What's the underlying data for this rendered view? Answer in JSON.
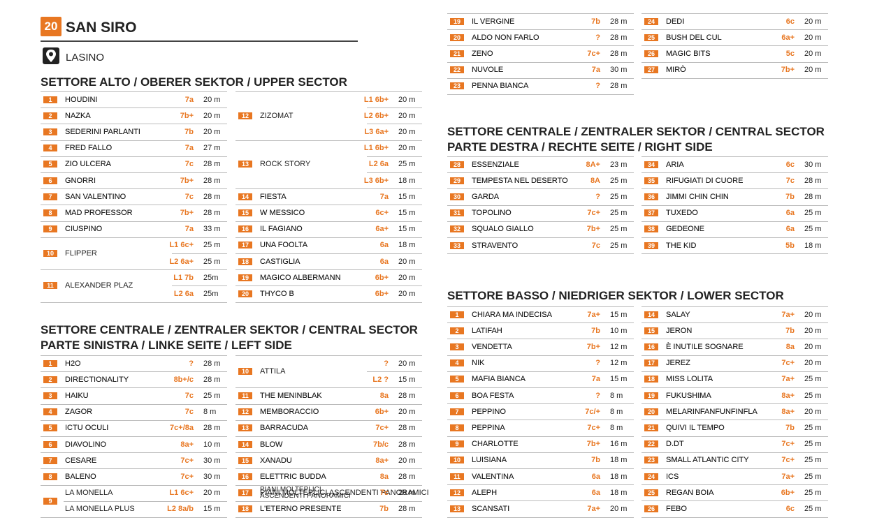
{
  "header": {
    "number": "20",
    "title": "SAN SIRO",
    "location": "LASINO"
  },
  "sections": [
    {
      "title": [
        "SETTORE ALTO / OBERER SEKTOR / UPPER SECTOR"
      ],
      "columns": [
        [
          {
            "n": "1",
            "name": "HOUDINI",
            "grade": "7a",
            "length": "20 m"
          },
          {
            "n": "2",
            "name": "NAZKA",
            "grade": "7b+",
            "length": "20 m"
          },
          {
            "n": "3",
            "name": "SEDERINI PARLANTI",
            "grade": "7b",
            "length": "20 m"
          },
          {
            "n": "4",
            "name": "FRED FALLO",
            "grade": "7a",
            "length": "27 m"
          },
          {
            "n": "5",
            "name": "ZIO ULCERA",
            "grade": "7c",
            "length": "28 m"
          },
          {
            "n": "6",
            "name": "GNORRI",
            "grade": "7b+",
            "length": "28 m"
          },
          {
            "n": "7",
            "name": "SAN VALENTINO",
            "grade": "7c",
            "length": "28 m"
          },
          {
            "n": "8",
            "name": "MAD PROFESSOR",
            "grade": "7b+",
            "length": "28 m"
          },
          {
            "n": "9",
            "name": "CIUSPINO",
            "grade": "7a",
            "length": "33 m"
          },
          {
            "n": "10",
            "name": "FLIPPER",
            "pitches": [
              {
                "grade": "L1 6c+",
                "length": "25 m"
              },
              {
                "grade": "L2 6a+",
                "length": "25 m"
              }
            ]
          },
          {
            "n": "11",
            "name": "ALEXANDER PLAZ",
            "pitches": [
              {
                "grade": "L1 7b",
                "length": "25m"
              },
              {
                "grade": "L2 6a",
                "length": "25m"
              }
            ]
          }
        ],
        [
          {
            "n": "12",
            "name": "ZIZOMAT",
            "pitches": [
              {
                "grade": "L1 6b+",
                "length": "20 m"
              },
              {
                "grade": "L2 6b+",
                "length": "20 m"
              },
              {
                "grade": "L3 6a+",
                "length": "20 m"
              }
            ]
          },
          {
            "n": "13",
            "name": "ROCK STORY",
            "pitches": [
              {
                "grade": "L1 6b+",
                "length": "20 m"
              },
              {
                "grade": "L2 6a",
                "length": "25 m"
              },
              {
                "grade": "L3 6b+",
                "length": "18 m"
              }
            ]
          },
          {
            "n": "14",
            "name": "FIESTA",
            "grade": "7a",
            "length": "15 m"
          },
          {
            "n": "15",
            "name": "W MESSICO",
            "grade": "6c+",
            "length": "15 m"
          },
          {
            "n": "16",
            "name": "IL FAGIANO",
            "grade": "6a+",
            "length": "15 m"
          },
          {
            "n": "17",
            "name": "UNA FOOLTA",
            "grade": "6a",
            "length": "18 m"
          },
          {
            "n": "18",
            "name": "CASTIGLIA",
            "grade": "6a",
            "length": "20 m"
          },
          {
            "n": "19",
            "name": "MAGICO ALBERMANN",
            "grade": "6b+",
            "length": "20 m"
          },
          {
            "n": "20",
            "name": "THYCO B",
            "grade": "6b+",
            "length": "20 m"
          }
        ]
      ]
    },
    {
      "title": [
        "SETTORE CENTRALE / ZENTRALER SEKTOR / CENTRAL SECTOR",
        "PARTE SINISTRA / LINKE SEITE / LEFT SIDE"
      ],
      "columns": [
        [
          {
            "n": "1",
            "name": "H2O",
            "grade": "?",
            "length": "28 m"
          },
          {
            "n": "2",
            "name": "DIRECTIONALITY",
            "grade": "8b+/c",
            "length": "28 m"
          },
          {
            "n": "3",
            "name": "HAIKU",
            "grade": "7c",
            "length": "25 m"
          },
          {
            "n": "4",
            "name": "ZAGOR",
            "grade": "7c",
            "length": "8 m"
          },
          {
            "n": "5",
            "name": "ICTU OCULI",
            "grade": "7c+/8a",
            "length": "28 m"
          },
          {
            "n": "6",
            "name": "DIAVOLINO",
            "grade": "8a+",
            "length": "10 m"
          },
          {
            "n": "7",
            "name": "CESARE",
            "grade": "7c+",
            "length": "30 m"
          },
          {
            "n": "8",
            "name": "BALENO",
            "grade": "7c+",
            "length": "30 m"
          },
          {
            "n": "9",
            "pitches": [
              {
                "name": "LA MONELLA",
                "grade": "L1 6c+",
                "length": "20 m"
              },
              {
                "name": "LA MONELLA PLUS",
                "grade": "L2 8a/b",
                "length": "15 m"
              }
            ]
          }
        ],
        [
          {
            "n": "10",
            "name": "ATTILA",
            "pitches": [
              {
                "grade": "?",
                "length": "20 m"
              },
              {
                "grade": "L2 ?",
                "length": "15 m"
              }
            ]
          },
          {
            "n": "11",
            "name": "THE MENINBLAK",
            "grade": "8a",
            "length": "28 m"
          },
          {
            "n": "12",
            "name": "MEMBORACCIO",
            "grade": "6b+",
            "length": "20 m"
          },
          {
            "n": "13",
            "name": "BARRACUDA",
            "grade": "7c+",
            "length": "28 m"
          },
          {
            "n": "14",
            "name": "BLOW",
            "grade": "7b/c",
            "length": "28 m"
          },
          {
            "n": "15",
            "name": "XANADU",
            "grade": "8a+",
            "length": "20 m"
          },
          {
            "n": "16",
            "name": "ELETTRIC BUDDA",
            "grade": "8a",
            "length": "28 m"
          },
          {
            "n": "17",
            "name": "PIANI MOLTEPLICI ASCENDENTI PANORAMICI",
            "grade": "7c",
            "length": "28 m"
          },
          {
            "n": "18",
            "name": "L'ETERNO PRESENTE",
            "grade": "7b",
            "length": "28 m"
          }
        ],
        [
          {
            "n": "19",
            "name": "IL VERGINE",
            "grade": "7b",
            "length": "28 m"
          },
          {
            "n": "20",
            "name": "ALDO NON FARLO",
            "grade": "?",
            "length": "28 m"
          },
          {
            "n": "21",
            "name": "ZENO",
            "grade": "7c+",
            "length": "28 m"
          },
          {
            "n": "22",
            "name": "NUVOLE",
            "grade": "7a",
            "length": "30 m"
          },
          {
            "n": "23",
            "name": "PENNA BIANCA",
            "grade": "?",
            "length": "28 m"
          }
        ],
        [
          {
            "n": "24",
            "name": "DEDI",
            "grade": "6c",
            "length": "20 m"
          },
          {
            "n": "25",
            "name": "BUSH DEL CUL",
            "grade": "6a+",
            "length": "20 m"
          },
          {
            "n": "26",
            "name": "MAGIC BITS",
            "grade": "5c",
            "length": "20 m"
          },
          {
            "n": "27",
            "name": "MIRÒ",
            "grade": "7b+",
            "length": "20 m"
          }
        ]
      ]
    },
    {
      "title": [
        "SETTORE CENTRALE / ZENTRALER SEKTOR / CENTRAL SECTOR",
        "PARTE DESTRA / RECHTE SEITE / RIGHT SIDE"
      ],
      "columns": [
        [
          {
            "n": "28",
            "name": "ESSENZIALE",
            "grade": "8A+",
            "length": "23 m"
          },
          {
            "n": "29",
            "name": "TEMPESTA NEL DESERTO",
            "grade": "8A",
            "length": "25 m"
          },
          {
            "n": "30",
            "name": "GARDA",
            "grade": "?",
            "length": "25 m"
          },
          {
            "n": "31",
            "name": "TOPOLINO",
            "grade": "7c+",
            "length": "25 m"
          },
          {
            "n": "32",
            "name": "SQUALO GIALLO",
            "grade": "7b+",
            "length": "25 m"
          },
          {
            "n": "33",
            "name": "STRAVENTO",
            "grade": "7c",
            "length": "25 m"
          }
        ],
        [
          {
            "n": "34",
            "name": "ARIA",
            "grade": "6c",
            "length": "30 m"
          },
          {
            "n": "35",
            "name": "RIFUGIATI DI CUORE",
            "grade": "7c",
            "length": "28 m"
          },
          {
            "n": "36",
            "name": "JIMMI CHIN CHIN",
            "grade": "7b",
            "length": "28 m"
          },
          {
            "n": "37",
            "name": "TUXEDO",
            "grade": "6a",
            "length": "25 m"
          },
          {
            "n": "38",
            "name": "GEDEONE",
            "grade": "6a",
            "length": "25 m"
          },
          {
            "n": "39",
            "name": "THE KID",
            "grade": "5b",
            "length": "18 m"
          }
        ]
      ]
    },
    {
      "title": [
        "SETTORE BASSO / NIEDRIGER SEKTOR / LOWER SECTOR"
      ],
      "columns": [
        [
          {
            "n": "1",
            "name": "CHIARA MA INDECISA",
            "grade": "7a+",
            "length": "15 m"
          },
          {
            "n": "2",
            "name": "LATIFAH",
            "grade": "7b",
            "length": "10 m"
          },
          {
            "n": "3",
            "name": "VENDETTA",
            "grade": "7b+",
            "length": "12 m"
          },
          {
            "n": "4",
            "name": "NIK",
            "grade": "?",
            "length": "12 m"
          },
          {
            "n": "5",
            "name": "MAFIA BIANCA",
            "grade": "7a",
            "length": "15 m"
          },
          {
            "n": "6",
            "name": "BOA FESTA",
            "grade": "?",
            "length": "8 m"
          },
          {
            "n": "7",
            "name": "PEPPINO",
            "grade": "7c/+",
            "length": "8 m"
          },
          {
            "n": "8",
            "name": "PEPPINA",
            "grade": "7c+",
            "length": "8 m"
          },
          {
            "n": "9",
            "name": "CHARLOTTE",
            "grade": "7b+",
            "length": "16 m"
          },
          {
            "n": "10",
            "name": "LUISIANA",
            "grade": "7b",
            "length": "18 m"
          },
          {
            "n": "11",
            "name": "VALENTINA",
            "grade": "6a",
            "length": "18 m"
          },
          {
            "n": "12",
            "name": "ALEPH",
            "grade": "6a",
            "length": "18 m"
          },
          {
            "n": "13",
            "name": "SCANSATI",
            "grade": "7a+",
            "length": "20 m"
          }
        ],
        [
          {
            "n": "14",
            "name": "SALAY",
            "grade": "7a+",
            "length": "20 m"
          },
          {
            "n": "15",
            "name": "JERON",
            "grade": "7b",
            "length": "20 m"
          },
          {
            "n": "16",
            "name": "È INUTILE SOGNARE",
            "grade": "8a",
            "length": "20 m"
          },
          {
            "n": "17",
            "name": "JEREZ",
            "grade": "7c+",
            "length": "20 m"
          },
          {
            "n": "18",
            "name": "MISS LOLITA",
            "grade": "7a+",
            "length": "25 m"
          },
          {
            "n": "19",
            "name": "FUKUSHIMA",
            "grade": "8a+",
            "length": "25 m"
          },
          {
            "n": "20",
            "name": "MELARINFANFUNFINFLA",
            "grade": "8a+",
            "length": "20 m"
          },
          {
            "n": "21",
            "name": "QUIVI IL TEMPO",
            "grade": "7b",
            "length": "25 m"
          },
          {
            "n": "22",
            "name": "D.DT",
            "grade": "7c+",
            "length": "25 m"
          },
          {
            "n": "23",
            "name": "SMALL ATLANTIC CITY",
            "grade": "7c+",
            "length": "25 m"
          },
          {
            "n": "24",
            "name": "ICS",
            "grade": "7a+",
            "length": "25 m"
          },
          {
            "n": "25",
            "name": "REGAN BOIA",
            "grade": "6b+",
            "length": "25 m"
          },
          {
            "n": "26",
            "name": "FEBO",
            "grade": "6c",
            "length": "25 m"
          }
        ]
      ]
    }
  ]
}
